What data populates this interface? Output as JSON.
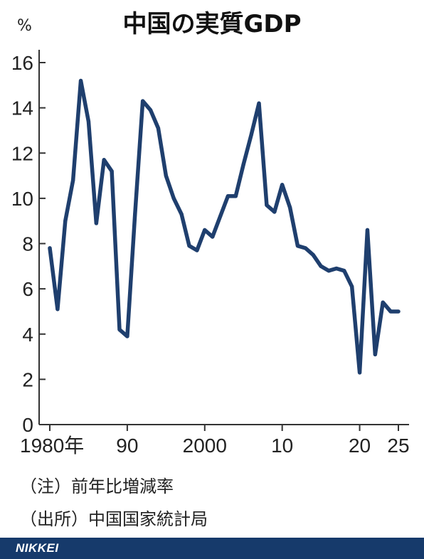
{
  "chart_data": {
    "type": "line",
    "title": "中国の実質GDP",
    "unit": "%",
    "x": [
      1980,
      1981,
      1982,
      1983,
      1984,
      1985,
      1986,
      1987,
      1988,
      1989,
      1990,
      1991,
      1992,
      1993,
      1994,
      1995,
      1996,
      1997,
      1998,
      1999,
      2000,
      2001,
      2002,
      2003,
      2004,
      2005,
      2006,
      2007,
      2008,
      2009,
      2010,
      2011,
      2012,
      2013,
      2014,
      2015,
      2016,
      2017,
      2018,
      2019,
      2020,
      2021,
      2022,
      2023,
      2024,
      2025
    ],
    "series": [
      {
        "values": [
          7.8,
          5.1,
          9.0,
          10.8,
          15.2,
          13.4,
          8.9,
          11.7,
          11.2,
          4.2,
          3.9,
          9.3,
          14.3,
          13.9,
          13.1,
          11.0,
          10.0,
          9.3,
          7.9,
          7.7,
          8.6,
          8.3,
          9.2,
          10.1,
          10.1,
          11.5,
          12.8,
          14.2,
          9.7,
          9.4,
          10.6,
          9.6,
          7.9,
          7.8,
          7.5,
          7.0,
          6.8,
          6.9,
          6.8,
          6.1,
          2.3,
          8.6,
          3.1,
          5.4,
          5.0,
          5.0
        ],
        "color": "#1f3f6e"
      }
    ],
    "ylim": [
      0,
      16
    ],
    "xlim": [
      1980,
      2025
    ],
    "y_ticks": [
      "0",
      "2",
      "4",
      "6",
      "8",
      "10",
      "12",
      "14",
      "16"
    ],
    "x_ticks": [
      {
        "value": 1980,
        "label": "1980年"
      },
      {
        "value": 1990,
        "label": "90"
      },
      {
        "value": 2000,
        "label": "2000"
      },
      {
        "value": 2010,
        "label": "10"
      },
      {
        "value": 2020,
        "label": "20"
      },
      {
        "value": 2025,
        "label": "25"
      }
    ],
    "grid": false
  },
  "notes": {
    "note": "（注）前年比増減率",
    "source": "（出所）中国国家統計局"
  },
  "footer": {
    "brand": "NIKKEI",
    "color": "#163a6b"
  }
}
